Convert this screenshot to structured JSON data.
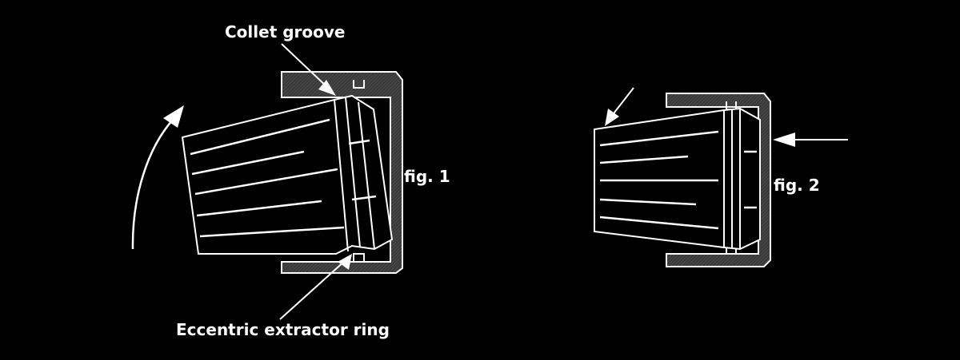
{
  "labels": {
    "collet_groove": "Collet groove",
    "eccentric_ring": "Eccentric extractor ring",
    "fig1": "fig. 1",
    "fig2": "fig. 2"
  },
  "colors": {
    "background": "#000000",
    "line": "#ffffff",
    "nut_fill": "#3a3a3a"
  }
}
